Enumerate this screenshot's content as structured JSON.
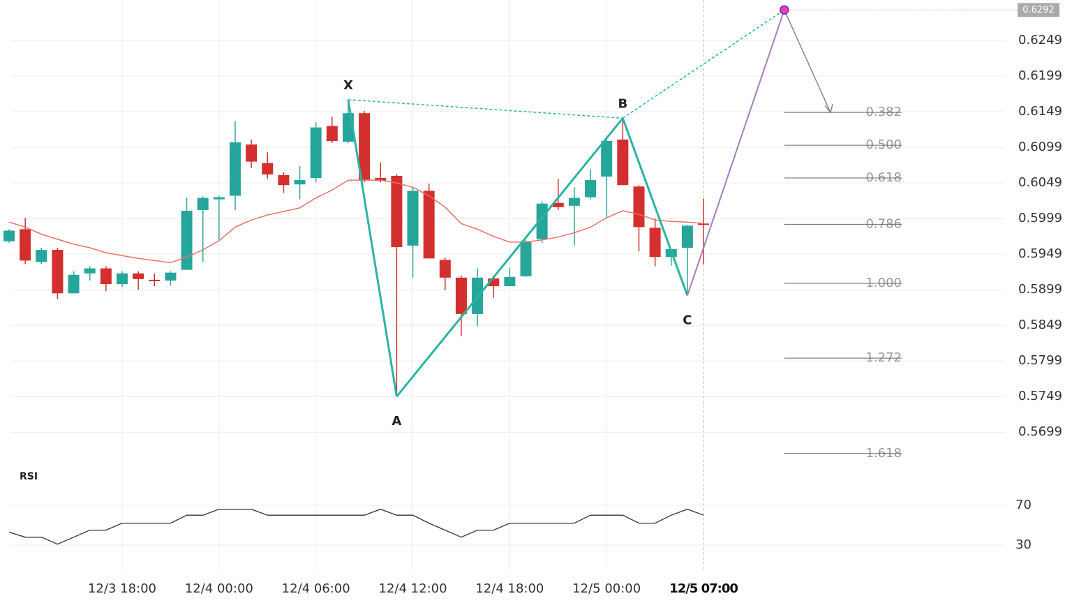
{
  "chart_data": [
    {
      "type": "candlestick",
      "categories": [
        null,
        null,
        null,
        null,
        null,
        null,
        null,
        "12/3 18:00",
        null,
        null,
        null,
        null,
        null,
        "12/4 00:00",
        null,
        null,
        null,
        null,
        null,
        "12/4 06:00",
        null,
        null,
        null,
        null,
        null,
        "12/4 12:00",
        null,
        null,
        null,
        null,
        null,
        "12/4 18:00",
        null,
        null,
        null,
        null,
        null,
        "12/5 00:00",
        null,
        null,
        null,
        null,
        null,
        "12/5 07:00"
      ],
      "open": [
        0.5967,
        0.5984,
        0.5938,
        0.5955,
        0.5894,
        0.5922,
        0.5929,
        0.5907,
        0.5922,
        0.5913,
        0.5912,
        0.5927,
        0.6011,
        0.6026,
        0.6031,
        0.6103,
        0.6077,
        0.606,
        0.6047,
        0.6056,
        0.6129,
        0.6107,
        0.6147,
        0.6056,
        0.6059,
        0.5961,
        0.6038,
        0.5941,
        0.5916,
        0.5865,
        0.5915,
        0.5904,
        0.5918,
        0.597,
        0.6021,
        0.6017,
        0.6029,
        0.6058,
        0.611,
        0.6044,
        0.5986,
        0.5945,
        0.5958,
        0.5992
      ],
      "high": [
        0.5984,
        0.6,
        0.5958,
        0.5958,
        0.5925,
        0.5932,
        0.5932,
        0.5925,
        0.5925,
        0.5922,
        0.5925,
        0.6028,
        0.603,
        0.6031,
        0.6136,
        0.611,
        0.6092,
        0.6064,
        0.6073,
        0.6134,
        0.6142,
        0.6166,
        0.615,
        0.6078,
        0.6061,
        0.6043,
        0.6048,
        0.5944,
        0.5919,
        0.5929,
        0.5917,
        0.593,
        0.5969,
        0.6023,
        0.6055,
        0.6043,
        0.6068,
        0.6111,
        0.614,
        0.6046,
        0.5999,
        0.5956,
        0.599,
        0.6027
      ],
      "low": [
        0.5965,
        0.5935,
        0.5935,
        0.5886,
        0.5894,
        0.5912,
        0.5897,
        0.5903,
        0.5899,
        0.5904,
        0.5905,
        0.5927,
        0.5938,
        0.5968,
        0.6011,
        0.607,
        0.6055,
        0.6035,
        0.6026,
        0.605,
        0.6105,
        0.6105,
        0.605,
        0.605,
        0.5749,
        0.5916,
        0.5943,
        0.5898,
        0.5834,
        0.5848,
        0.5888,
        0.5904,
        0.5917,
        0.5965,
        0.6011,
        0.5961,
        0.6026,
        0.6,
        0.6046,
        0.5953,
        0.5932,
        0.5933,
        0.5891,
        0.5935
      ],
      "close": [
        0.5982,
        0.594,
        0.5955,
        0.5894,
        0.592,
        0.5929,
        0.5907,
        0.5922,
        0.5914,
        0.5912,
        0.5923,
        0.601,
        0.6028,
        0.6029,
        0.6106,
        0.6079,
        0.6061,
        0.6046,
        0.6053,
        0.6127,
        0.6108,
        0.6147,
        0.6053,
        0.6052,
        0.5959,
        0.6038,
        0.5943,
        0.5916,
        0.5865,
        0.5916,
        0.5904,
        0.5917,
        0.5967,
        0.602,
        0.6015,
        0.6028,
        0.6053,
        0.6108,
        0.6046,
        0.5987,
        0.5945,
        0.5956,
        0.5989,
        0.599
      ],
      "up_color": "#26a69a",
      "down_color": "#d32f2f",
      "ma": {
        "color": "#e57368",
        "values": [
          0.5994,
          0.5987,
          0.5977,
          0.597,
          0.5963,
          0.5958,
          0.5951,
          0.5947,
          0.5943,
          0.594,
          0.5937,
          0.5945,
          0.5955,
          0.5968,
          0.5987,
          0.5997,
          0.6004,
          0.6009,
          0.6014,
          0.6028,
          0.6039,
          0.6053,
          0.6053,
          0.6053,
          0.6049,
          0.6043,
          0.6031,
          0.6015,
          0.5992,
          0.5984,
          0.5974,
          0.5966,
          0.5966,
          0.5969,
          0.5973,
          0.5979,
          0.5987,
          0.6,
          0.601,
          0.6005,
          0.5997,
          0.5995,
          0.5994,
          0.5992
        ]
      },
      "ylim": [
        0.5659,
        0.6306
      ],
      "yticks": [
        0.5699,
        0.5749,
        0.5799,
        0.5849,
        0.5899,
        0.5949,
        0.5999,
        0.6049,
        0.6099,
        0.6149,
        0.6199,
        0.6249
      ],
      "grid": true,
      "pattern": {
        "color": "#2bb3a3",
        "projection_color": "#a77bc0",
        "marker_color": "#e040d0",
        "points": [
          {
            "label": "X",
            "x": 21,
            "y": 0.6166
          },
          {
            "label": "A",
            "x": 24,
            "y": 0.5749
          },
          {
            "label": "B",
            "x": 38,
            "y": 0.614
          },
          {
            "label": "C",
            "x": 42,
            "y": 0.5891
          },
          {
            "x": 48,
            "y": 0.6292
          }
        ]
      },
      "fib_levels": {
        "ratios": [
          0.382,
          {
            "value": 0.5,
            "label": "0.500"
          },
          0.618,
          0.786,
          {
            "value": 1,
            "label": "1.000"
          },
          1.272,
          1.618
        ],
        "prices": [
          0.6148,
          0.6102,
          0.6056,
          0.5991,
          0.5908,
          0.5803,
          0.5669
        ]
      }
    },
    {
      "type": "line",
      "title": "RSI",
      "color": "#333333",
      "values": [
        43,
        38,
        38,
        31,
        38,
        45,
        45,
        52,
        52,
        52,
        52,
        60,
        60,
        66,
        66,
        66,
        60,
        60,
        60,
        60,
        60,
        60,
        60,
        66,
        60,
        60,
        52,
        45,
        38,
        45,
        45,
        52,
        52,
        52,
        52,
        52,
        60,
        60,
        60,
        52,
        52,
        60,
        66,
        60
      ],
      "ylim": [
        14,
        86
      ],
      "yticks": [
        30,
        70
      ]
    }
  ]
}
